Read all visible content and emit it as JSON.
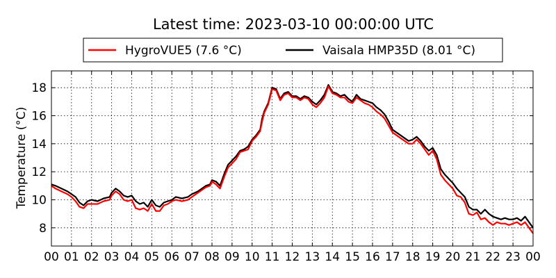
{
  "chart_data": {
    "type": "line",
    "title": "Latest time: 2023-03-10 00:00:00 UTC",
    "xlabel": "",
    "ylabel": "Temperature (°C)",
    "xlim": [
      0,
      24
    ],
    "ylim": [
      6.7,
      19.2
    ],
    "x_ticks": [
      {
        "v": 0,
        "label": "00"
      },
      {
        "v": 1,
        "label": "01"
      },
      {
        "v": 2,
        "label": "02"
      },
      {
        "v": 3,
        "label": "03"
      },
      {
        "v": 4,
        "label": "04"
      },
      {
        "v": 5,
        "label": "05"
      },
      {
        "v": 6,
        "label": "06"
      },
      {
        "v": 7,
        "label": "07"
      },
      {
        "v": 8,
        "label": "08"
      },
      {
        "v": 9,
        "label": "09"
      },
      {
        "v": 10,
        "label": "10"
      },
      {
        "v": 11,
        "label": "11"
      },
      {
        "v": 12,
        "label": "12"
      },
      {
        "v": 13,
        "label": "13"
      },
      {
        "v": 14,
        "label": "14"
      },
      {
        "v": 15,
        "label": "15"
      },
      {
        "v": 16,
        "label": "16"
      },
      {
        "v": 17,
        "label": "17"
      },
      {
        "v": 18,
        "label": "18"
      },
      {
        "v": 19,
        "label": "19"
      },
      {
        "v": 20,
        "label": "20"
      },
      {
        "v": 21,
        "label": "21"
      },
      {
        "v": 22,
        "label": "22"
      },
      {
        "v": 23,
        "label": "23"
      },
      {
        "v": 24,
        "label": "00"
      }
    ],
    "y_ticks": [
      {
        "v": 8,
        "label": "8"
      },
      {
        "v": 10,
        "label": "10"
      },
      {
        "v": 12,
        "label": "12"
      },
      {
        "v": 14,
        "label": "14"
      },
      {
        "v": 16,
        "label": "16"
      },
      {
        "v": 18,
        "label": "18"
      }
    ],
    "grid": true,
    "legend_position": "top-center",
    "series": [
      {
        "name": "Vaisala HMP35D (8.01 °C)",
        "color": "#000000",
        "x": [
          0,
          0.2,
          0.5,
          0.8,
          1.0,
          1.2,
          1.4,
          1.6,
          1.8,
          2.0,
          2.3,
          2.6,
          2.9,
          3.0,
          3.2,
          3.4,
          3.6,
          3.8,
          4.0,
          4.2,
          4.4,
          4.6,
          4.8,
          5.0,
          5.2,
          5.4,
          5.6,
          5.8,
          6.0,
          6.2,
          6.5,
          6.8,
          7.0,
          7.3,
          7.5,
          7.7,
          7.9,
          8.0,
          8.2,
          8.4,
          8.6,
          8.8,
          9.0,
          9.2,
          9.4,
          9.6,
          9.8,
          10.0,
          10.2,
          10.4,
          10.5,
          10.6,
          10.8,
          11.0,
          11.2,
          11.4,
          11.6,
          11.8,
          12.0,
          12.2,
          12.4,
          12.6,
          12.8,
          13.0,
          13.2,
          13.4,
          13.6,
          13.8,
          14.0,
          14.2,
          14.4,
          14.6,
          14.8,
          15.0,
          15.2,
          15.4,
          15.6,
          15.8,
          16.0,
          16.2,
          16.4,
          16.6,
          16.8,
          17.0,
          17.2,
          17.4,
          17.6,
          17.8,
          18.0,
          18.2,
          18.4,
          18.6,
          18.8,
          19.0,
          19.2,
          19.4,
          19.6,
          19.8,
          20.0,
          20.2,
          20.4,
          20.6,
          20.8,
          21.0,
          21.2,
          21.4,
          21.6,
          21.8,
          22.0,
          22.2,
          22.4,
          22.6,
          22.8,
          23.0,
          23.2,
          23.4,
          23.6,
          23.8,
          24.0
        ],
        "y": [
          11.1,
          11.0,
          10.8,
          10.6,
          10.4,
          10.2,
          9.8,
          9.6,
          9.9,
          10.0,
          9.9,
          10.1,
          10.2,
          10.5,
          10.8,
          10.6,
          10.3,
          10.2,
          10.3,
          9.9,
          9.7,
          9.8,
          9.5,
          10.0,
          9.6,
          9.5,
          9.8,
          9.9,
          10.0,
          10.2,
          10.1,
          10.2,
          10.4,
          10.6,
          10.8,
          11.0,
          11.1,
          11.4,
          11.3,
          11.0,
          11.8,
          12.5,
          12.8,
          13.1,
          13.5,
          13.6,
          13.8,
          14.3,
          14.6,
          15.0,
          15.8,
          16.3,
          16.9,
          18.0,
          17.9,
          17.2,
          17.6,
          17.7,
          17.4,
          17.4,
          17.2,
          17.4,
          17.3,
          17.0,
          16.8,
          17.1,
          17.5,
          18.2,
          17.7,
          17.6,
          17.4,
          17.5,
          17.2,
          17.0,
          17.5,
          17.2,
          17.1,
          17.0,
          16.9,
          16.6,
          16.4,
          16.1,
          15.6,
          15.0,
          14.8,
          14.6,
          14.4,
          14.2,
          14.3,
          14.5,
          14.2,
          13.8,
          13.5,
          13.7,
          13.2,
          12.2,
          11.8,
          11.5,
          11.2,
          10.8,
          10.5,
          10.2,
          9.5,
          9.3,
          9.3,
          9.0,
          9.3,
          9.0,
          8.8,
          8.7,
          8.6,
          8.7,
          8.6,
          8.6,
          8.7,
          8.5,
          8.8,
          8.4,
          8.0
        ]
      },
      {
        "name": "HygroVUE5 (7.6 °C)",
        "color": "#ff0000",
        "x": [
          0,
          0.2,
          0.5,
          0.8,
          1.0,
          1.2,
          1.4,
          1.6,
          1.8,
          2.0,
          2.3,
          2.6,
          2.9,
          3.0,
          3.2,
          3.4,
          3.6,
          3.8,
          4.0,
          4.2,
          4.4,
          4.6,
          4.8,
          5.0,
          5.2,
          5.4,
          5.6,
          5.8,
          6.0,
          6.2,
          6.5,
          6.8,
          7.0,
          7.3,
          7.5,
          7.7,
          7.9,
          8.0,
          8.2,
          8.4,
          8.6,
          8.8,
          9.0,
          9.2,
          9.4,
          9.6,
          9.8,
          10.0,
          10.2,
          10.4,
          10.5,
          10.6,
          10.8,
          11.0,
          11.2,
          11.4,
          11.6,
          11.8,
          12.0,
          12.2,
          12.4,
          12.6,
          12.8,
          13.0,
          13.2,
          13.4,
          13.6,
          13.8,
          14.0,
          14.2,
          14.4,
          14.6,
          14.8,
          15.0,
          15.2,
          15.4,
          15.6,
          15.8,
          16.0,
          16.2,
          16.4,
          16.6,
          16.8,
          17.0,
          17.2,
          17.4,
          17.6,
          17.8,
          18.0,
          18.2,
          18.4,
          18.6,
          18.8,
          19.0,
          19.2,
          19.4,
          19.6,
          19.8,
          20.0,
          20.2,
          20.4,
          20.6,
          20.8,
          21.0,
          21.2,
          21.4,
          21.6,
          21.8,
          22.0,
          22.2,
          22.4,
          22.6,
          22.8,
          23.0,
          23.2,
          23.4,
          23.6,
          23.8,
          24.0
        ],
        "y": [
          11.0,
          10.8,
          10.6,
          10.4,
          10.2,
          9.9,
          9.5,
          9.4,
          9.7,
          9.7,
          9.7,
          9.9,
          10.0,
          10.3,
          10.6,
          10.4,
          10.0,
          9.9,
          10.0,
          9.4,
          9.3,
          9.4,
          9.2,
          9.7,
          9.2,
          9.2,
          9.6,
          9.7,
          9.9,
          10.0,
          9.9,
          10.0,
          10.2,
          10.5,
          10.7,
          10.9,
          11.0,
          11.3,
          11.1,
          10.8,
          11.6,
          12.3,
          12.6,
          12.9,
          13.4,
          13.5,
          13.6,
          14.2,
          14.5,
          14.9,
          15.6,
          16.2,
          16.8,
          17.9,
          17.8,
          17.1,
          17.5,
          17.6,
          17.3,
          17.3,
          17.1,
          17.3,
          17.2,
          16.8,
          16.6,
          16.9,
          17.3,
          18.1,
          17.6,
          17.5,
          17.3,
          17.3,
          17.0,
          16.9,
          17.3,
          17.1,
          16.9,
          16.8,
          16.6,
          16.3,
          16.1,
          15.8,
          15.3,
          14.8,
          14.6,
          14.4,
          14.2,
          14.0,
          14.0,
          14.3,
          14.0,
          13.6,
          13.2,
          13.5,
          12.9,
          11.8,
          11.4,
          11.1,
          10.8,
          10.3,
          10.2,
          9.8,
          9.0,
          8.9,
          9.1,
          8.6,
          8.7,
          8.4,
          8.2,
          8.4,
          8.3,
          8.3,
          8.2,
          8.3,
          8.4,
          8.2,
          8.4,
          8.0,
          7.6
        ]
      }
    ],
    "legend": [
      {
        "label": "HygroVUE5 (7.6 °C)",
        "color": "#ff0000"
      },
      {
        "label": "Vaisala HMP35D (8.01 °C)",
        "color": "#000000"
      }
    ]
  }
}
